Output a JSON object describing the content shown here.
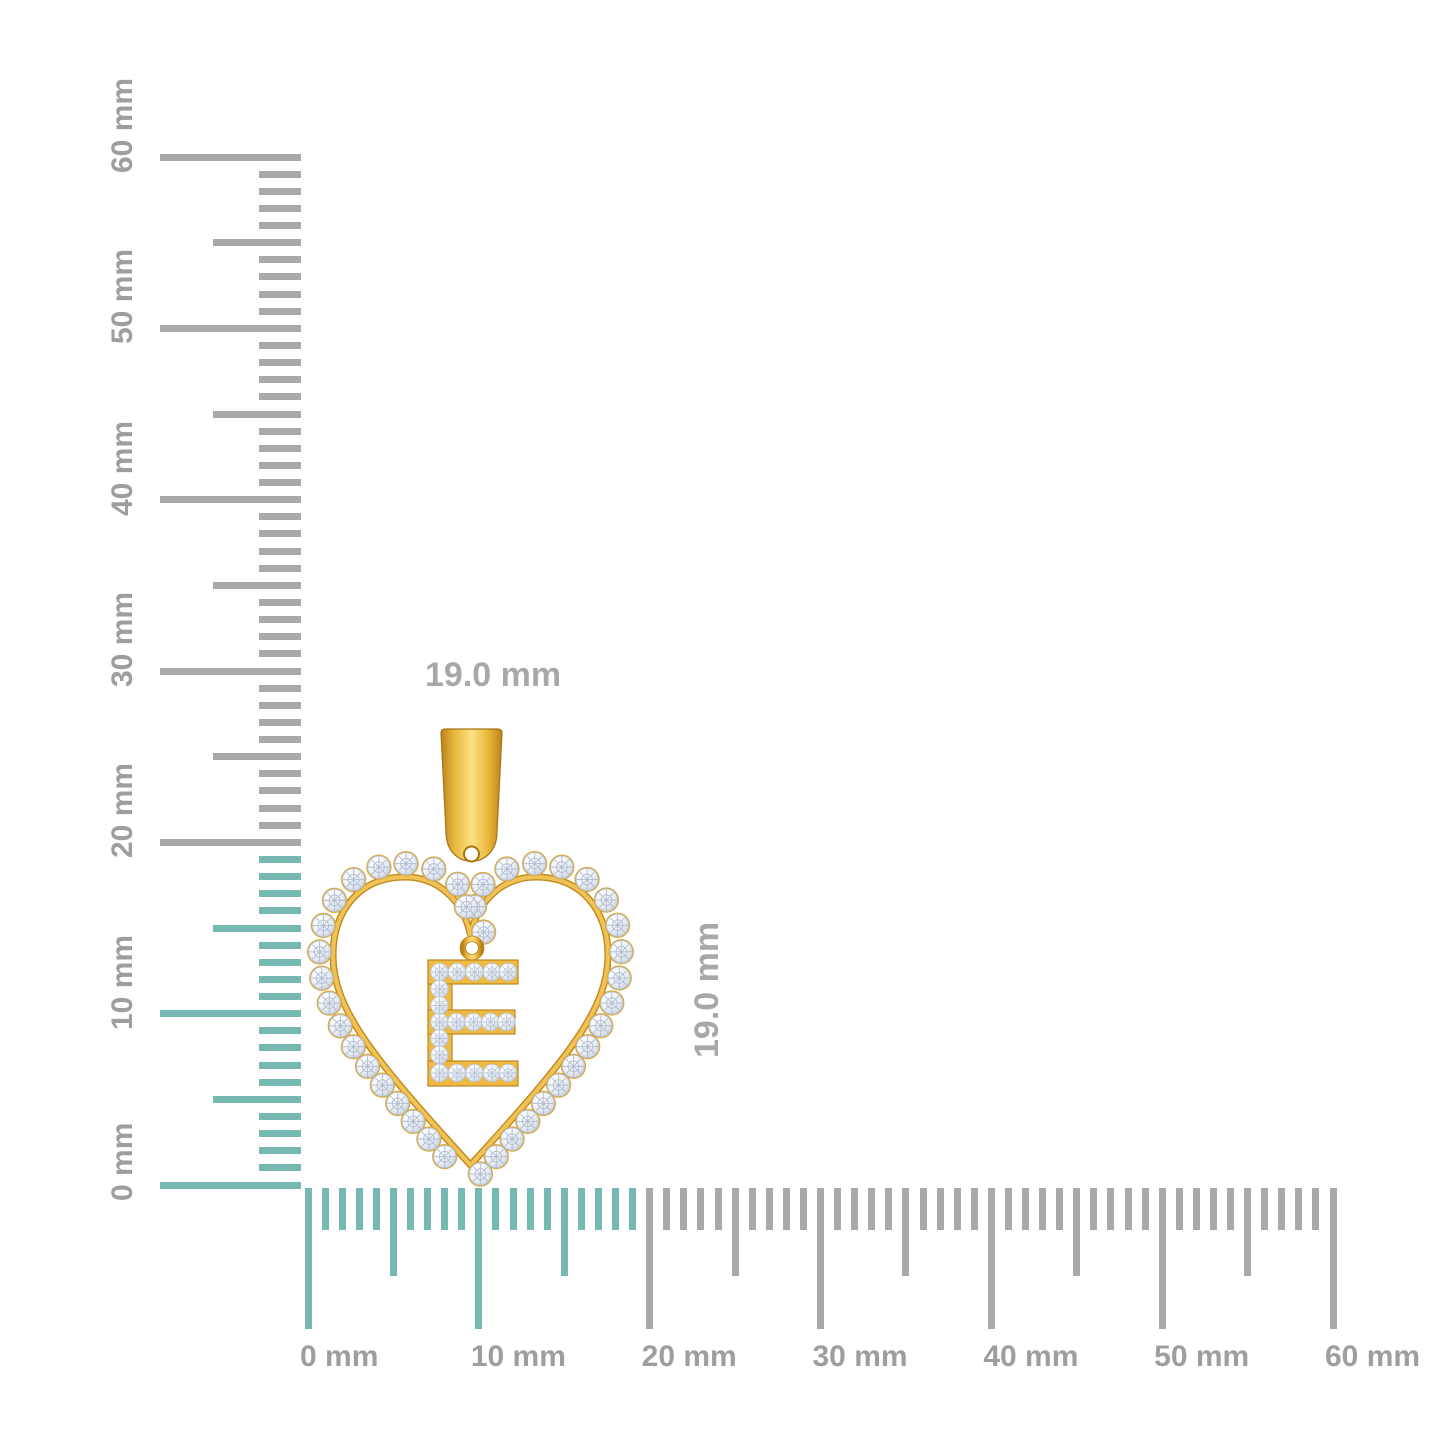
{
  "pendant": {
    "initial": "E",
    "width_label": "19.0 mm",
    "height_label": "19.0 mm"
  },
  "rulers": {
    "mm_max": 60,
    "label_step_mm": 10,
    "highlight_span_mm": 19,
    "vertical": {
      "labels": [
        "0 mm",
        "10 mm",
        "20 mm",
        "30 mm",
        "40 mm",
        "50 mm",
        "60 mm"
      ]
    },
    "horizontal": {
      "labels": [
        "0 mm",
        "10 mm",
        "20 mm",
        "30 mm",
        "40 mm",
        "50 mm",
        "60 mm"
      ]
    }
  },
  "colors": {
    "background": "#ffffff",
    "tick_gray": "#a9a9a9",
    "tick_highlight": "#76b9b2",
    "ruler_label": "#9e9e9e",
    "dimension_label": "#a8a8a8",
    "gold": "#ecb83e",
    "gold_light": "#fbe184",
    "gold_dark": "#c08a1c",
    "gold_edge": "#a97414",
    "diamond_white": "#f2f4f8",
    "diamond_facet": "#9fb0c8"
  }
}
